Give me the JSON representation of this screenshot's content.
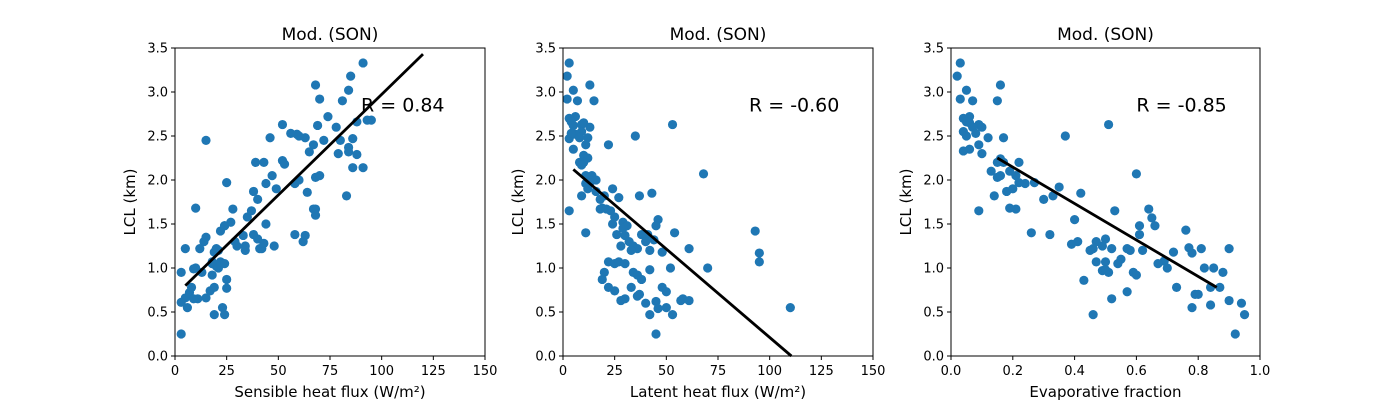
{
  "colors": {
    "points": "#1f77b4",
    "fit_line": "#000000",
    "axes": "#000000",
    "background": "#ffffff"
  },
  "chart_data": [
    {
      "type": "scatter",
      "title": "Mod. (SON)",
      "xlabel": "Sensible heat flux (W/m²)",
      "ylabel": "LCL (km)",
      "xlim": [
        0,
        150
      ],
      "ylim": [
        0,
        3.5
      ],
      "xticks": [
        0,
        25,
        50,
        75,
        100,
        125,
        150
      ],
      "yticks": [
        0.0,
        0.5,
        1.0,
        1.5,
        2.0,
        2.5,
        3.0,
        3.5
      ],
      "xtick_labels": [
        "0",
        "25",
        "50",
        "75",
        "100",
        "125",
        "150"
      ],
      "ytick_labels": [
        "0.0",
        "0.5",
        "1.0",
        "1.5",
        "2.0",
        "2.5",
        "3.0",
        "3.5"
      ],
      "annotation": {
        "text": "R = 0.84",
        "x": 90,
        "y": 2.78
      },
      "fit_line": {
        "x": [
          5,
          120
        ],
        "y": [
          0.8,
          3.43
        ]
      },
      "points": {
        "x": [
          15,
          91,
          85,
          68,
          84,
          81,
          70,
          74,
          69,
          88,
          93,
          95,
          52,
          78,
          63,
          86,
          56,
          59,
          60,
          46,
          52,
          72,
          67,
          80,
          84,
          65,
          84,
          39,
          43,
          47,
          53,
          60,
          58,
          49,
          25,
          68,
          70,
          91,
          86,
          79,
          88,
          44,
          38,
          40,
          64,
          68,
          83,
          35,
          37,
          28,
          24,
          33,
          38,
          58,
          67,
          68,
          22,
          27,
          34,
          42,
          29,
          24,
          14,
          20,
          15,
          21,
          19,
          18,
          30,
          34,
          48,
          41,
          43,
          44,
          62,
          63,
          40,
          12,
          10,
          5,
          9,
          10,
          13,
          21,
          20,
          18,
          22,
          24,
          25,
          3,
          5,
          11,
          7,
          9,
          25,
          8,
          15,
          17,
          18,
          6,
          19,
          19,
          3,
          23,
          24,
          3
        ],
        "y": [
          2.45,
          3.33,
          3.18,
          3.08,
          3.02,
          2.9,
          2.92,
          2.72,
          2.62,
          2.66,
          2.68,
          2.68,
          2.63,
          2.6,
          2.48,
          2.47,
          2.53,
          2.52,
          2.5,
          2.48,
          2.22,
          2.45,
          2.4,
          2.45,
          2.37,
          2.32,
          2.32,
          2.2,
          2.2,
          2.05,
          2.18,
          2.0,
          1.96,
          1.9,
          1.97,
          2.03,
          2.05,
          2.14,
          2.14,
          2.3,
          2.29,
          1.96,
          1.87,
          1.78,
          1.86,
          1.67,
          1.82,
          1.58,
          1.65,
          1.67,
          1.48,
          1.37,
          1.38,
          1.38,
          1.67,
          1.6,
          1.42,
          1.52,
          1.2,
          1.22,
          1.3,
          1.48,
          1.3,
          1.22,
          1.35,
          1.2,
          1.18,
          1.05,
          1.25,
          1.25,
          1.25,
          1.22,
          1.28,
          1.5,
          1.3,
          1.37,
          1.33,
          1.22,
          1.68,
          1.22,
          0.99,
          1.0,
          0.95,
          1.0,
          1.02,
          1.07,
          1.07,
          1.05,
          0.87,
          0.95,
          0.66,
          0.65,
          0.72,
          0.65,
          0.77,
          0.78,
          0.66,
          0.74,
          0.92,
          0.55,
          0.47,
          0.78,
          0.61,
          0.55,
          0.47,
          0.25
        ]
      }
    },
    {
      "type": "scatter",
      "title": "Mod. (SON)",
      "xlabel": "Latent heat flux (W/m²)",
      "ylabel": "LCL (km)",
      "xlim": [
        0,
        150
      ],
      "ylim": [
        0,
        3.5
      ],
      "xticks": [
        0,
        25,
        50,
        75,
        100,
        125,
        150
      ],
      "yticks": [
        0.0,
        0.5,
        1.0,
        1.5,
        2.0,
        2.5,
        3.0,
        3.5
      ],
      "xtick_labels": [
        "0",
        "25",
        "50",
        "75",
        "100",
        "125",
        "150"
      ],
      "ytick_labels": [
        "0.0",
        "0.5",
        "1.0",
        "1.5",
        "2.0",
        "2.5",
        "3.0",
        "3.5"
      ],
      "annotation": {
        "text": "R = -0.60",
        "x": 90,
        "y": 2.78
      },
      "fit_line": {
        "x": [
          5,
          110.5
        ],
        "y": [
          2.12,
          0.0
        ]
      },
      "points": {
        "x": [
          3,
          2,
          5,
          13,
          7,
          15,
          2,
          6,
          3,
          4,
          5,
          9,
          10,
          13,
          9,
          12,
          3,
          6,
          4,
          8,
          11,
          5,
          10,
          12,
          10,
          8,
          9,
          11,
          14,
          16,
          11,
          12,
          13,
          16,
          18,
          20,
          22,
          24,
          27,
          18,
          19,
          21,
          23,
          25,
          29,
          31,
          37,
          43,
          46,
          35,
          41,
          3,
          9,
          11,
          24,
          29,
          26,
          30,
          32,
          34,
          38,
          40,
          36,
          45,
          44,
          42,
          48,
          52,
          54,
          58,
          61,
          68,
          53,
          28,
          33,
          22,
          25,
          27,
          30,
          34,
          38,
          36,
          42,
          48,
          50,
          45,
          20,
          19,
          22,
          25,
          36,
          30,
          33,
          28,
          37,
          40,
          42,
          46,
          50,
          53,
          57,
          61,
          70,
          93,
          95,
          95,
          110,
          45
        ],
        "y": [
          3.33,
          3.18,
          3.02,
          3.08,
          2.9,
          2.9,
          2.92,
          2.72,
          2.7,
          2.66,
          2.62,
          2.63,
          2.65,
          2.6,
          2.55,
          2.48,
          2.47,
          2.52,
          2.53,
          2.48,
          2.4,
          2.35,
          2.28,
          2.25,
          2.2,
          2.2,
          2.17,
          2.05,
          2.05,
          2.0,
          1.96,
          1.9,
          1.97,
          1.87,
          1.78,
          1.82,
          2.4,
          1.9,
          1.8,
          1.67,
          1.68,
          1.67,
          1.65,
          1.58,
          1.52,
          1.48,
          1.82,
          1.85,
          1.55,
          2.5,
          1.38,
          1.65,
          1.82,
          1.4,
          1.5,
          1.45,
          1.38,
          1.37,
          1.3,
          1.25,
          1.38,
          1.3,
          1.22,
          1.48,
          1.32,
          1.2,
          1.18,
          1.0,
          1.4,
          0.65,
          1.22,
          2.07,
          2.63,
          1.25,
          1.2,
          1.07,
          1.05,
          1.07,
          1.05,
          0.95,
          0.87,
          0.92,
          0.98,
          0.78,
          0.73,
          0.62,
          0.95,
          0.87,
          0.78,
          0.74,
          0.68,
          0.65,
          0.78,
          0.63,
          0.7,
          0.6,
          0.47,
          0.54,
          0.55,
          0.47,
          0.63,
          0.63,
          1.0,
          1.42,
          1.17,
          1.07,
          0.55,
          0.25
        ]
      }
    },
    {
      "type": "scatter",
      "title": "Mod. (SON)",
      "xlabel": "Evaporative fraction",
      "ylabel": "LCL (km)",
      "xlim": [
        0,
        1
      ],
      "ylim": [
        0,
        3.5
      ],
      "xticks": [
        0.0,
        0.2,
        0.4,
        0.6,
        0.8,
        1.0
      ],
      "yticks": [
        0.0,
        0.5,
        1.0,
        1.5,
        2.0,
        2.5,
        3.0,
        3.5
      ],
      "xtick_labels": [
        "0.0",
        "0.2",
        "0.4",
        "0.6",
        "0.8",
        "1.0"
      ],
      "ytick_labels": [
        "0.0",
        "0.5",
        "1.0",
        "1.5",
        "2.0",
        "2.5",
        "3.0",
        "3.5"
      ],
      "annotation": {
        "text": "R = -0.85",
        "x": 0.6,
        "y": 2.78
      },
      "fit_line": {
        "x": [
          0.15,
          0.86
        ],
        "y": [
          2.25,
          0.78
        ]
      },
      "points": {
        "x": [
          0.03,
          0.02,
          0.05,
          0.16,
          0.07,
          0.15,
          0.03,
          0.06,
          0.04,
          0.05,
          0.09,
          0.06,
          0.07,
          0.1,
          0.12,
          0.04,
          0.08,
          0.05,
          0.09,
          0.17,
          0.06,
          0.04,
          0.16,
          0.15,
          0.17,
          0.19,
          0.22,
          0.21,
          0.24,
          0.27,
          0.18,
          0.2,
          0.22,
          0.15,
          0.16,
          0.1,
          0.14,
          0.13,
          0.09,
          0.37,
          0.51,
          0.42,
          0.33,
          0.3,
          0.21,
          0.19,
          0.26,
          0.32,
          0.4,
          0.41,
          0.39,
          0.35,
          0.47,
          0.5,
          0.49,
          0.46,
          0.45,
          0.52,
          0.55,
          0.58,
          0.61,
          0.57,
          0.54,
          0.64,
          0.65,
          0.66,
          0.72,
          0.69,
          0.77,
          0.81,
          0.78,
          0.76,
          0.7,
          0.82,
          0.6,
          0.53,
          0.5,
          0.49,
          0.51,
          0.47,
          0.59,
          0.67,
          0.73,
          0.79,
          0.84,
          0.8,
          0.78,
          0.85,
          0.9,
          0.87,
          0.88,
          0.94,
          0.9,
          0.92,
          0.84,
          0.43,
          0.52,
          0.46,
          0.5,
          0.61,
          0.57,
          0.6,
          0.62,
          0.95
        ],
        "y": [
          3.33,
          3.18,
          3.02,
          3.08,
          2.9,
          2.9,
          2.92,
          2.72,
          2.7,
          2.66,
          2.63,
          2.65,
          2.6,
          2.6,
          2.48,
          2.55,
          2.53,
          2.5,
          2.4,
          2.48,
          2.35,
          2.33,
          2.24,
          2.2,
          2.2,
          2.1,
          2.2,
          2.05,
          1.96,
          1.97,
          1.87,
          1.9,
          1.97,
          2.03,
          2.05,
          2.3,
          1.82,
          2.1,
          1.65,
          2.5,
          2.63,
          1.85,
          1.82,
          1.78,
          1.67,
          1.68,
          1.4,
          1.38,
          1.55,
          1.3,
          1.27,
          1.92,
          1.3,
          1.33,
          1.25,
          1.22,
          1.2,
          1.22,
          1.1,
          1.2,
          1.38,
          1.22,
          1.05,
          1.67,
          1.57,
          1.48,
          1.18,
          1.08,
          1.23,
          1.22,
          1.17,
          1.43,
          1.0,
          1.0,
          2.07,
          1.65,
          1.07,
          0.97,
          0.95,
          1.07,
          0.95,
          1.05,
          0.78,
          0.7,
          0.58,
          0.7,
          0.55,
          1.0,
          1.22,
          0.78,
          0.95,
          0.6,
          0.63,
          0.25,
          0.78,
          0.86,
          0.65,
          0.47,
          0.98,
          1.48,
          0.73,
          0.92,
          1.2,
          0.47
        ]
      }
    }
  ]
}
